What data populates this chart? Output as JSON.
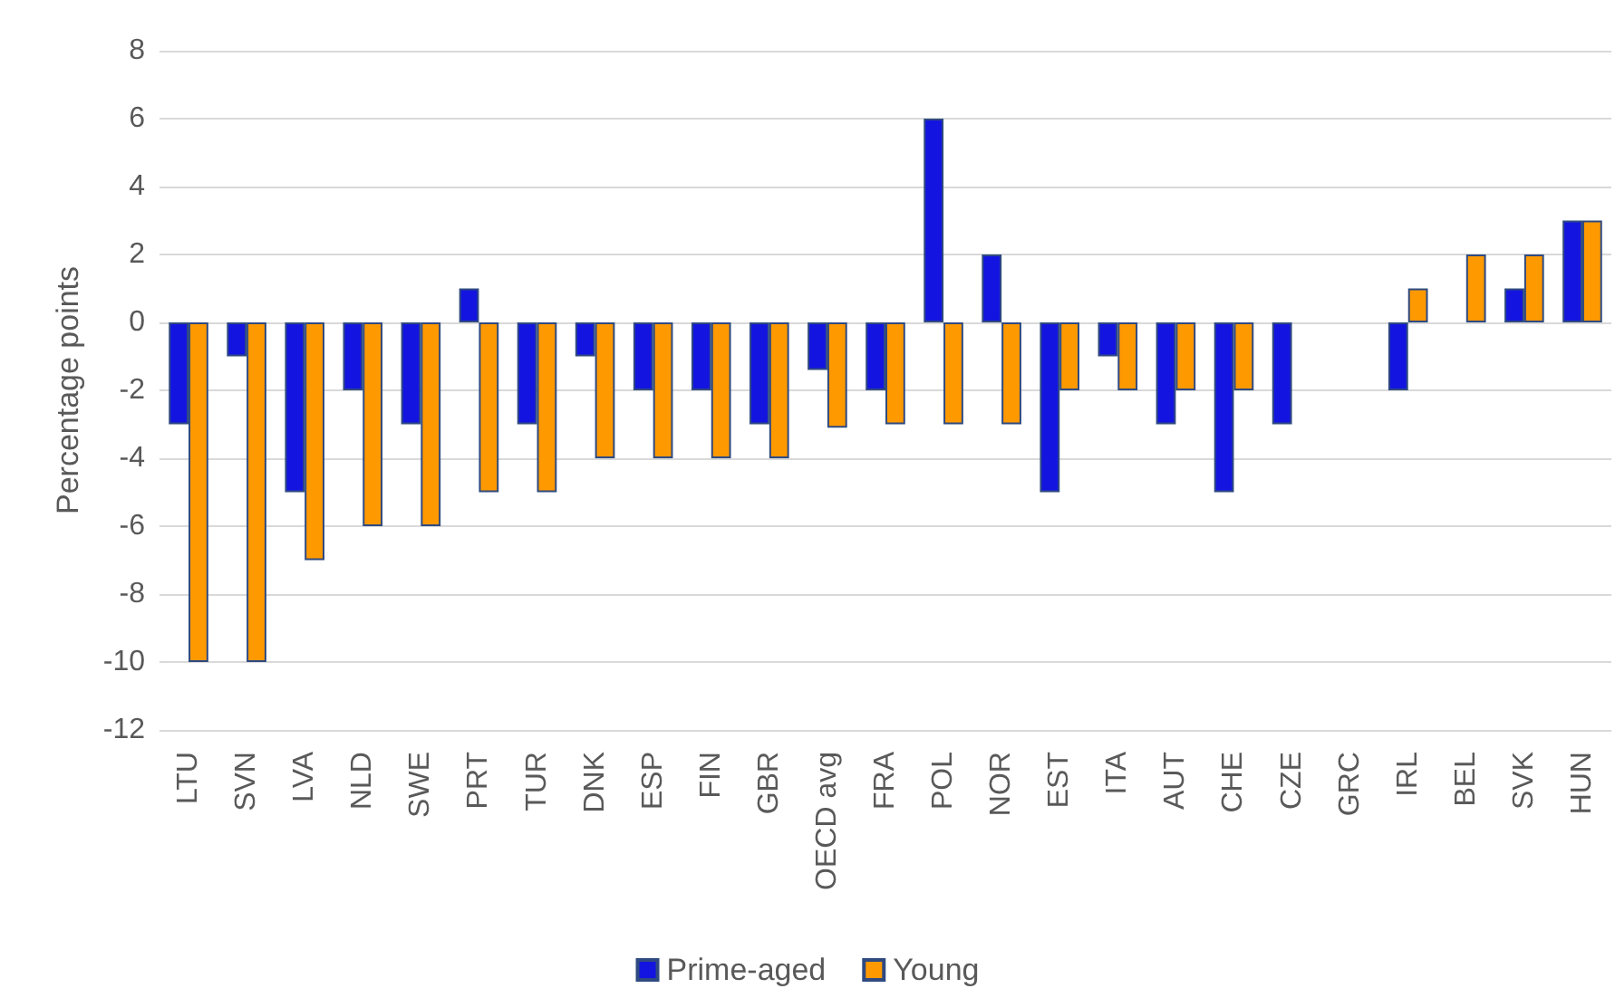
{
  "chart_data": {
    "type": "bar",
    "ylabel": "Percentage points",
    "categories": [
      "LTU",
      "SVN",
      "LVA",
      "NLD",
      "SWE",
      "PRT",
      "TUR",
      "DNK",
      "ESP",
      "FIN",
      "GBR",
      "OECD avg",
      "FRA",
      "POL",
      "NOR",
      "EST",
      "ITA",
      "AUT",
      "CHE",
      "CZE",
      "GRC",
      "IRL",
      "BEL",
      "SVK",
      "HUN"
    ],
    "series": [
      {
        "name": "Prime-aged",
        "color": "#1414e0",
        "values": [
          -3,
          -1,
          -5,
          -2,
          -3,
          1,
          -3,
          -1,
          -2,
          -2,
          -3,
          -1.4,
          -2,
          6,
          2,
          -5,
          -1,
          -3,
          -5,
          -3,
          0,
          -2,
          0,
          1,
          3
        ]
      },
      {
        "name": "Young",
        "color": "#ff9900",
        "values": [
          -10,
          -10,
          -7,
          -6,
          -6,
          -5,
          -5,
          -4,
          -4,
          -4,
          -4,
          -3.1,
          -3,
          -3,
          -3,
          -2,
          -2,
          -2,
          -2,
          0,
          0,
          1,
          2,
          2,
          3
        ]
      }
    ],
    "ylim": [
      -12,
      8
    ],
    "yticks": [
      -12,
      -10,
      -8,
      -6,
      -4,
      -2,
      0,
      2,
      4,
      6,
      8
    ],
    "grid": "y",
    "legend": "bottom"
  }
}
